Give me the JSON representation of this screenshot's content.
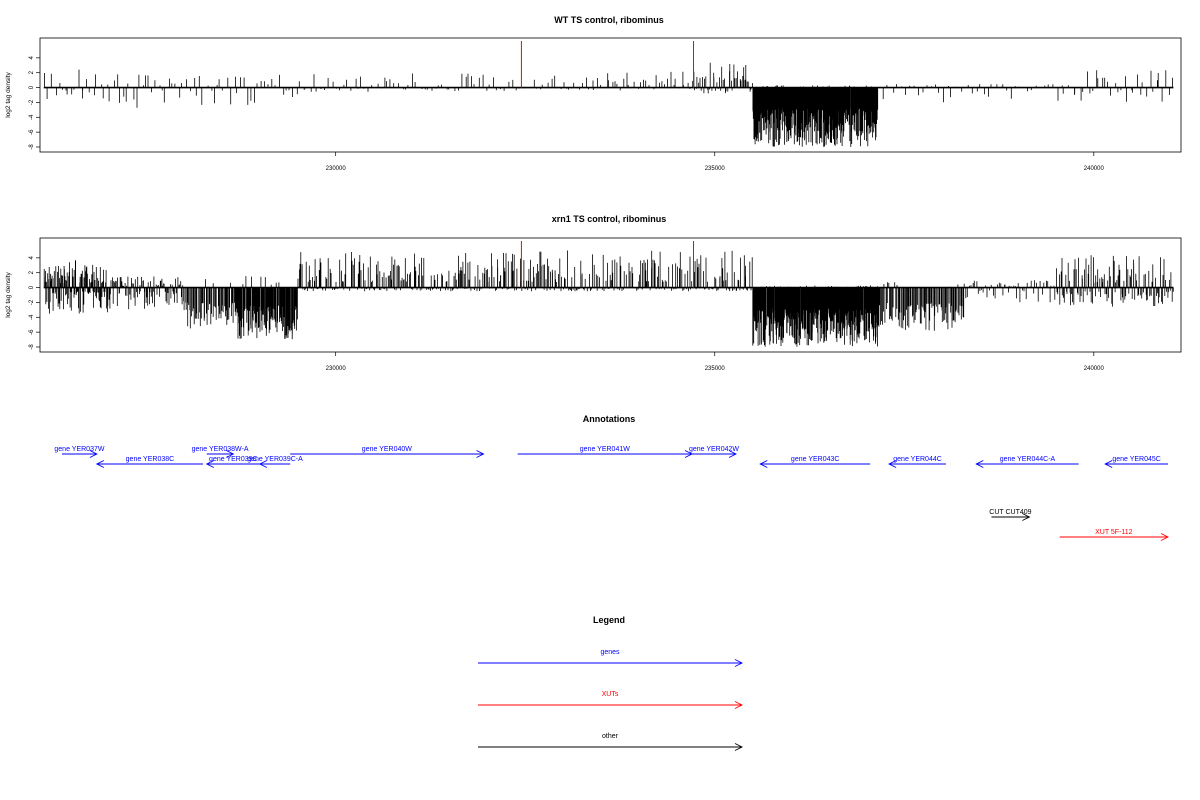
{
  "chart_data": [
    {
      "type": "bar",
      "title": "WT TS control, ribominus",
      "ylabel": "log2 tag density",
      "ylim": [
        -8,
        6
      ],
      "xlim": [
        226100,
        241150
      ],
      "xticks": [
        "230000",
        "235000",
        "240000"
      ],
      "yticks": [
        "4",
        "2",
        "0",
        "-2",
        "-4",
        "-6",
        "-8"
      ],
      "markers": [
        232450,
        234720
      ],
      "segments": [
        {
          "from": 226150,
          "to": 227000,
          "n": 20,
          "pos": 2.5,
          "neg": -1.6,
          "seed": 11
        },
        {
          "from": 227000,
          "to": 227600,
          "n": 14,
          "pos": 2.0,
          "neg": -2.8,
          "seed": 12
        },
        {
          "from": 227600,
          "to": 229500,
          "n": 42,
          "pos": 1.8,
          "neg": -2.4,
          "seed": 13
        },
        {
          "from": 229500,
          "to": 232400,
          "n": 60,
          "pos": 1.9,
          "neg": -0.6,
          "seed": 14
        },
        {
          "from": 232400,
          "to": 234700,
          "n": 60,
          "pos": 2.2,
          "neg": -0.4,
          "seed": 15
        },
        {
          "from": 234700,
          "to": 235500,
          "n": 50,
          "pos": 3.4,
          "neg": -0.8,
          "seed": 16
        },
        {
          "from": 235500,
          "to": 237150,
          "n": 380,
          "pos": 0.3,
          "neg": -8.0,
          "seed": 17
        },
        {
          "from": 237150,
          "to": 239800,
          "n": 50,
          "pos": 0.5,
          "neg": -2.2,
          "seed": 18
        },
        {
          "from": 239800,
          "to": 241050,
          "n": 30,
          "pos": 2.6,
          "neg": -2.0,
          "seed": 19
        }
      ]
    },
    {
      "type": "bar",
      "title": "xrn1 TS control, ribominus",
      "ylabel": "log2 tag density",
      "ylim": [
        -8,
        6
      ],
      "xlim": [
        226100,
        241150
      ],
      "xticks": [
        "230000",
        "235000",
        "240000"
      ],
      "yticks": [
        "4",
        "2",
        "0",
        "-2",
        "-4",
        "-6",
        "-8"
      ],
      "markers": [
        232450,
        234720
      ],
      "segments": [
        {
          "from": 226150,
          "to": 227000,
          "n": 130,
          "pos": 4.0,
          "neg": -3.5,
          "seed": 21
        },
        {
          "from": 227000,
          "to": 228000,
          "n": 90,
          "pos": 1.5,
          "neg": -3.2,
          "seed": 22
        },
        {
          "from": 228000,
          "to": 228700,
          "n": 60,
          "pos": 1.2,
          "neg": -5.5,
          "seed": 23
        },
        {
          "from": 228700,
          "to": 229500,
          "n": 120,
          "pos": 1.6,
          "neg": -7.0,
          "seed": 24
        },
        {
          "from": 229500,
          "to": 232400,
          "n": 220,
          "pos": 5.0,
          "neg": -0.5,
          "seed": 25
        },
        {
          "from": 232400,
          "to": 235500,
          "n": 230,
          "pos": 5.0,
          "neg": -0.5,
          "seed": 26
        },
        {
          "from": 235500,
          "to": 237150,
          "n": 380,
          "pos": 0.3,
          "neg": -8.0,
          "seed": 27
        },
        {
          "from": 237150,
          "to": 238300,
          "n": 100,
          "pos": 1.2,
          "neg": -5.8,
          "seed": 28
        },
        {
          "from": 238300,
          "to": 239500,
          "n": 50,
          "pos": 1.0,
          "neg": -2.0,
          "seed": 29
        },
        {
          "from": 239500,
          "to": 241050,
          "n": 130,
          "pos": 4.4,
          "neg": -2.6,
          "seed": 30
        }
      ]
    }
  ],
  "annotations": {
    "title": "Annotations",
    "features": [
      {
        "label": "gene YER037W",
        "from": 226100,
        "to": 226850,
        "strand": "+",
        "row": 0,
        "type": "gene"
      },
      {
        "label": "gene YER038C",
        "from": 226850,
        "to": 228250,
        "strand": "-",
        "row": 1,
        "type": "gene"
      },
      {
        "label": "gene YER038W-A",
        "from": 228300,
        "to": 228650,
        "strand": "+",
        "row": 0,
        "type": "gene"
      },
      {
        "label": "gene YER039C",
        "from": 228300,
        "to": 229000,
        "strand": "-",
        "row": 1,
        "type": "gene"
      },
      {
        "label": "gene YER039C-A",
        "from": 229000,
        "to": 229400,
        "strand": "-",
        "row": 1,
        "type": "gene"
      },
      {
        "label": "gene YER040W",
        "from": 229400,
        "to": 231950,
        "strand": "+",
        "row": 0,
        "type": "gene"
      },
      {
        "label": "gene YER041W",
        "from": 232400,
        "to": 234700,
        "strand": "+",
        "row": 0,
        "type": "gene"
      },
      {
        "label": "gene YER042W",
        "from": 234700,
        "to": 235280,
        "strand": "+",
        "row": 0,
        "type": "gene"
      },
      {
        "label": "gene YER043C",
        "from": 235600,
        "to": 237050,
        "strand": "-",
        "row": 1,
        "type": "gene"
      },
      {
        "label": "gene YER044C",
        "from": 237300,
        "to": 238050,
        "strand": "-",
        "row": 1,
        "type": "gene"
      },
      {
        "label": "gene YER044C-A",
        "from": 238450,
        "to": 239800,
        "strand": "-",
        "row": 1,
        "type": "gene"
      },
      {
        "label": "gene YER045C",
        "from": 240150,
        "to": 241600,
        "strand": "-",
        "row": 1,
        "type": "gene"
      },
      {
        "label": "CUT CUT409",
        "from": 238650,
        "to": 239150,
        "strand": "+",
        "row": 2,
        "type": "other"
      },
      {
        "label": "XUT 5F-112",
        "from": 239550,
        "to": 241420,
        "strand": "+",
        "row": 3,
        "type": "xut"
      }
    ]
  },
  "legend": {
    "title": "Legend",
    "items": [
      {
        "label": "genes",
        "color": "#0000ff"
      },
      {
        "label": "XUTs",
        "color": "#ff0000"
      },
      {
        "label": "other",
        "color": "#000000"
      }
    ]
  }
}
